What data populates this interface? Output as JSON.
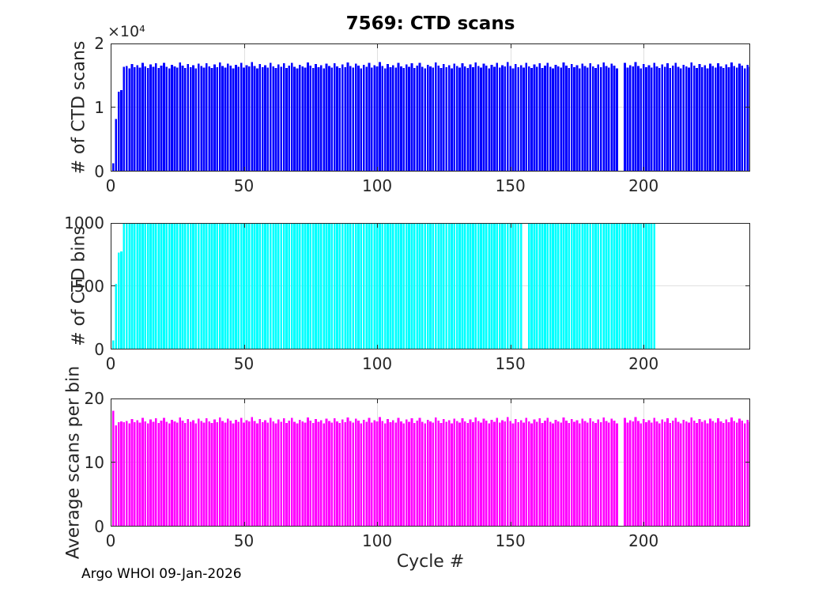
{
  "title": "7569: CTD scans",
  "footer": "Argo WHOI 09-Jan-2026",
  "x_axis": {
    "label": "Cycle #",
    "tick_values": [
      0,
      50,
      100,
      150,
      200
    ],
    "tick_labels": [
      "0",
      "50",
      "100",
      "150",
      "200"
    ],
    "xlim": [
      0,
      240
    ],
    "first_cycle": 1
  },
  "grid_color": "#e0e0e0",
  "axis_color": "#262626",
  "chart_data": [
    {
      "type": "bar",
      "name": "ctd-scans",
      "ylabel": "# of CTD scans",
      "bar_color": "#0000ff",
      "ylim": [
        0,
        20000
      ],
      "ytick_values": [
        0,
        10000,
        20000
      ],
      "ytick_labels": [
        "0",
        "1",
        "2"
      ],
      "exponent": "×10⁴",
      "missing_cycles": [
        191,
        192
      ],
      "values": [
        1300,
        8200,
        12500,
        12700,
        16340,
        16492,
        16126,
        16808,
        16310,
        16631,
        16228,
        16969,
        16433,
        16144,
        16702,
        16355,
        16890,
        16201,
        16551,
        16975,
        16384,
        16120,
        16678,
        16440,
        16259,
        17012,
        16530,
        16180,
        16760,
        16325,
        16610,
        16090,
        16871,
        16487,
        16230,
        16940,
        16398,
        16155,
        16725,
        16290,
        17060,
        16465,
        16208,
        16840,
        16560,
        16135,
        16690,
        16370,
        16955,
        16245,
        16585,
        16430,
        17105,
        16492,
        16126,
        16808,
        16310,
        16631,
        16228,
        16969,
        16433,
        16144,
        16702,
        16355,
        16890,
        16201,
        16551,
        16975,
        16384,
        16120,
        16678,
        16440,
        16259,
        17012,
        16530,
        16180,
        16760,
        16325,
        16610,
        16090,
        16871,
        16487,
        16230,
        16940,
        16398,
        16155,
        16725,
        16290,
        17060,
        16465,
        16208,
        16840,
        16560,
        16135,
        16690,
        16370,
        16955,
        16245,
        16585,
        16430,
        17105,
        16492,
        16126,
        16808,
        16310,
        16631,
        16228,
        16969,
        16433,
        16144,
        16702,
        16355,
        16890,
        16201,
        16551,
        16975,
        16384,
        16120,
        16678,
        16440,
        16259,
        17012,
        16530,
        16180,
        16760,
        16325,
        16610,
        16090,
        16871,
        16487,
        16230,
        16940,
        16398,
        16155,
        16725,
        16290,
        17060,
        16465,
        16208,
        16840,
        16560,
        16135,
        16690,
        16370,
        16955,
        16245,
        16585,
        16430,
        17105,
        16492,
        16126,
        16808,
        16310,
        16631,
        16228,
        16969,
        16433,
        16144,
        16702,
        16355,
        16890,
        16201,
        16551,
        16975,
        16384,
        16120,
        16678,
        16440,
        16259,
        17012,
        16530,
        16180,
        16760,
        16325,
        16610,
        16090,
        16871,
        16487,
        16230,
        16940,
        16398,
        16155,
        16725,
        16290,
        17060,
        16465,
        16208,
        16840,
        16560,
        16135,
        0,
        0,
        16955,
        16245,
        16585,
        16430,
        17105,
        16492,
        16126,
        16808,
        16310,
        16631,
        16228,
        16969,
        16433,
        16144,
        16702,
        16355,
        16890,
        16201,
        16551,
        16975,
        16384,
        16120,
        16678,
        16440,
        16259,
        17012,
        16530,
        16180,
        16760,
        16325,
        16610,
        16090,
        16871,
        16487,
        16230,
        16940,
        16398,
        16155,
        16725,
        16290,
        17060,
        16465,
        16208,
        16840,
        16560,
        16135,
        16690,
        16370
      ]
    },
    {
      "type": "bar",
      "name": "ctd-bins",
      "ylabel": "# of CTD bins",
      "bar_color": "#00ffff",
      "ylim": [
        0,
        1000
      ],
      "ytick_values": [
        0,
        500,
        1000
      ],
      "ytick_labels": [
        "0",
        "500",
        "1000"
      ],
      "missing_cycles": [
        191,
        192
      ],
      "values": [
        72,
        520,
        765,
        775,
        1000,
        1000,
        1000,
        1000,
        1000,
        1000,
        1000,
        1000,
        1000,
        1000,
        1000,
        1000,
        1000,
        1000,
        1000,
        1000,
        1000,
        1000,
        1000,
        1000,
        1000,
        1000,
        1000,
        1000,
        1000,
        1000,
        1000,
        1000,
        1000,
        1000,
        1000,
        1000,
        1000,
        1000,
        1000,
        1000,
        1000,
        1000,
        1000,
        1000,
        1000,
        1000,
        1000,
        1000,
        1000,
        1000,
        1000,
        1000,
        1000,
        1000,
        1000,
        1000,
        1000,
        1000,
        1000,
        1000,
        1000,
        1000,
        1000,
        1000,
        1000,
        1000,
        1000,
        1000,
        1000,
        1000,
        1000,
        1000,
        1000,
        1000,
        1000,
        1000,
        1000,
        1000,
        1000,
        1000,
        1000,
        1000,
        1000,
        1000,
        1000,
        1000,
        1000,
        1000,
        1000,
        1000,
        1000,
        1000,
        1000,
        1000,
        1000,
        1000,
        1000,
        1000,
        1000,
        1000,
        1000,
        1000,
        1000,
        1000,
        1000,
        1000,
        1000,
        1000,
        1000,
        1000,
        1000,
        1000,
        1000,
        1000,
        1000,
        1000,
        1000,
        1000,
        1000,
        1000,
        1000,
        1000,
        1000,
        1000,
        1000,
        1000,
        1000,
        1000,
        1000,
        1000,
        1000,
        1000,
        1000,
        1000,
        1000,
        1000,
        1000,
        1000,
        1000,
        1000,
        1000,
        1000,
        1000,
        1000,
        1000,
        1000,
        1000,
        1000,
        1000,
        1000,
        1000,
        1000,
        1000,
        1000,
        0,
        0,
        1000,
        1000,
        1000,
        1000,
        1000,
        1000,
        1000,
        1000,
        1000,
        1000,
        1000,
        1000,
        1000,
        1000,
        1000,
        1000,
        1000,
        1000,
        1000,
        1000,
        1000,
        1000,
        1000,
        1000,
        1000,
        1000,
        1000,
        1000,
        1000,
        1000,
        1000,
        1000,
        1000,
        1000,
        1000,
        1000,
        1000,
        1000,
        1000,
        1000,
        1000,
        1000,
        1000,
        1000,
        1000,
        1000,
        1000,
        1000
      ]
    },
    {
      "type": "bar",
      "name": "avg-scans-per-bin",
      "ylabel": "Average scans per bin",
      "bar_color": "#ff00ff",
      "ylim": [
        0,
        20
      ],
      "ytick_values": [
        0,
        10,
        20
      ],
      "ytick_labels": [
        "0",
        "10",
        "20"
      ],
      "missing_cycles": [
        191,
        192
      ],
      "values": [
        18.1,
        15.8,
        16.3,
        16.4,
        16.3,
        16.49,
        16.13,
        16.81,
        16.31,
        16.63,
        16.23,
        16.97,
        16.43,
        16.14,
        16.7,
        16.36,
        16.89,
        16.2,
        16.55,
        16.98,
        16.38,
        16.12,
        16.68,
        16.44,
        16.26,
        17.01,
        16.53,
        16.18,
        16.76,
        16.33,
        16.61,
        16.09,
        16.87,
        16.49,
        16.23,
        16.94,
        16.4,
        16.16,
        16.73,
        16.29,
        17.06,
        16.47,
        16.21,
        16.84,
        16.56,
        16.14,
        16.69,
        16.37,
        16.96,
        16.25,
        16.59,
        16.43,
        17.11,
        16.49,
        16.13,
        16.81,
        16.31,
        16.63,
        16.23,
        16.97,
        16.43,
        16.14,
        16.7,
        16.36,
        16.89,
        16.2,
        16.55,
        16.98,
        16.38,
        16.12,
        16.68,
        16.44,
        16.26,
        17.01,
        16.53,
        16.18,
        16.76,
        16.33,
        16.61,
        16.09,
        16.87,
        16.49,
        16.23,
        16.94,
        16.4,
        16.16,
        16.73,
        16.29,
        17.06,
        16.47,
        16.21,
        16.84,
        16.56,
        16.14,
        16.69,
        16.37,
        16.96,
        16.25,
        16.59,
        16.43,
        17.11,
        16.49,
        16.13,
        16.81,
        16.31,
        16.63,
        16.23,
        16.97,
        16.43,
        16.14,
        16.7,
        16.36,
        16.89,
        16.2,
        16.55,
        16.98,
        16.38,
        16.12,
        16.68,
        16.44,
        16.26,
        17.01,
        16.53,
        16.18,
        16.76,
        16.33,
        16.61,
        16.09,
        16.87,
        16.49,
        16.23,
        16.94,
        16.4,
        16.16,
        16.73,
        16.29,
        17.06,
        16.47,
        16.21,
        16.84,
        16.56,
        16.14,
        16.69,
        16.37,
        16.96,
        16.25,
        16.59,
        16.43,
        17.11,
        16.49,
        16.13,
        16.81,
        16.31,
        16.63,
        16.23,
        16.97,
        16.43,
        16.14,
        16.7,
        16.36,
        16.89,
        16.2,
        16.55,
        16.98,
        16.38,
        16.12,
        16.68,
        16.44,
        16.26,
        17.01,
        16.53,
        16.18,
        16.76,
        16.33,
        16.61,
        16.09,
        16.87,
        16.49,
        16.23,
        16.94,
        16.4,
        16.16,
        16.73,
        16.29,
        17.06,
        16.47,
        16.21,
        16.84,
        16.56,
        16.14,
        0,
        0,
        16.96,
        16.25,
        16.59,
        16.43,
        17.11,
        16.49,
        16.13,
        16.81,
        16.31,
        16.63,
        16.23,
        16.97,
        16.43,
        16.14,
        16.7,
        16.36,
        16.89,
        16.2,
        16.55,
        16.98,
        16.38,
        16.12,
        16.68,
        16.44,
        16.26,
        17.01,
        16.53,
        16.18,
        16.76,
        16.33,
        16.61,
        16.09,
        16.87,
        16.49,
        16.23,
        16.94,
        16.4,
        16.16,
        16.73,
        16.29,
        17.06,
        16.47,
        16.21,
        16.84,
        16.56,
        16.14,
        16.69,
        16.37
      ]
    }
  ]
}
